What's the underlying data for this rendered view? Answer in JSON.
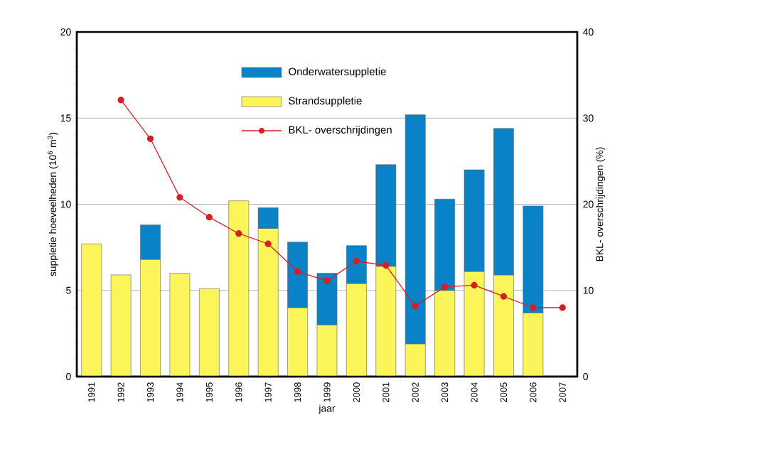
{
  "chart_data": {
    "type": "bar",
    "stacked": true,
    "xlabel": "jaar",
    "ylabel": "suppletie hoeveelheden (10$^{6}$ m$^{3}$)",
    "y2label": "BKL- overschrijdingen (%)",
    "categories": [
      "1991",
      "1992",
      "1993",
      "1994",
      "1995",
      "1996",
      "1997",
      "1998",
      "1999",
      "2000",
      "2001",
      "2002",
      "2003",
      "2004",
      "2005",
      "2006",
      "2007"
    ],
    "series": [
      {
        "name": "Strandsuppletie",
        "color": "#fbf55a",
        "values": [
          7.7,
          5.9,
          6.8,
          6.0,
          5.1,
          10.2,
          8.6,
          4.0,
          3.0,
          5.4,
          6.4,
          1.9,
          5.0,
          6.1,
          5.9,
          3.7,
          null
        ]
      },
      {
        "name": "Onderwatersuppletie",
        "color": "#0a82c8",
        "values": [
          null,
          null,
          2.0,
          null,
          null,
          null,
          1.2,
          3.8,
          3.0,
          2.2,
          5.9,
          13.3,
          5.3,
          5.9,
          8.5,
          6.2,
          null
        ]
      },
      {
        "name": "BKL- overschrijdingen",
        "type": "line",
        "axis": "y2",
        "color": "#d42020",
        "marker": "circle",
        "values": [
          null,
          32.1,
          27.6,
          20.8,
          18.5,
          16.6,
          15.4,
          12.2,
          11.1,
          13.4,
          12.9,
          8.2,
          10.4,
          10.6,
          9.3,
          8.0,
          8.0
        ]
      }
    ],
    "ylim": [
      0,
      20
    ],
    "yticks": [
      0,
      5,
      10,
      15,
      20
    ],
    "y2lim": [
      0,
      40
    ],
    "y2ticks": [
      0,
      10,
      20,
      30,
      40
    ],
    "grid": "y",
    "legend": "top"
  }
}
